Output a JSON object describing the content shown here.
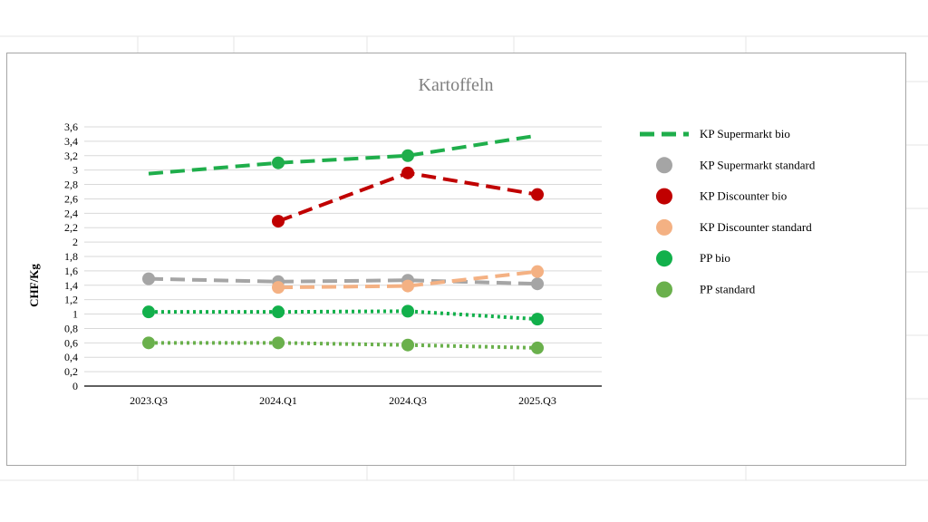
{
  "chart_data": {
    "type": "line",
    "title": "Kartoffeln",
    "xlabel": "",
    "ylabel": "CHF/Kg",
    "categories": [
      "2023.Q3",
      "2024.Q1",
      "2024.Q3",
      "2025.Q3"
    ],
    "ylim": [
      0,
      3.6
    ],
    "yticks": [
      "0",
      "0,2",
      "0,4",
      "0,6",
      "0,8",
      "1",
      "1,2",
      "1,4",
      "1,6",
      "1,8",
      "2",
      "2,2",
      "2,4",
      "2,6",
      "2,8",
      "3",
      "3,2",
      "3,4",
      "3,6"
    ],
    "grid": true,
    "legend_position": "right",
    "series": [
      {
        "name": "KP Supermarkt bio",
        "color": "#1fae4b",
        "line": "dashed",
        "marker": "circle",
        "values": [
          2.95,
          3.1,
          3.2,
          3.48
        ]
      },
      {
        "name": "KP Supermarkt standard",
        "color": "#a5a5a5",
        "line": "dashed",
        "marker": "circle",
        "values": [
          1.49,
          1.45,
          1.47,
          1.42
        ]
      },
      {
        "name": "KP Discounter bio",
        "color": "#c00000",
        "line": "dashed",
        "marker": "circle",
        "values": [
          null,
          2.29,
          2.96,
          2.66
        ]
      },
      {
        "name": "KP Discounter standard",
        "color": "#f4b183",
        "line": "dashed",
        "marker": "circle",
        "values": [
          null,
          1.37,
          1.39,
          1.59
        ]
      },
      {
        "name": "PP bio",
        "color": "#12b04b",
        "line": "dotted",
        "marker": "circle",
        "values": [
          1.03,
          1.03,
          1.04,
          0.93
        ]
      },
      {
        "name": "PP standard",
        "color": "#6ab04c",
        "line": "dotted",
        "marker": "circle",
        "values": [
          0.6,
          0.6,
          0.57,
          0.53
        ]
      }
    ]
  }
}
